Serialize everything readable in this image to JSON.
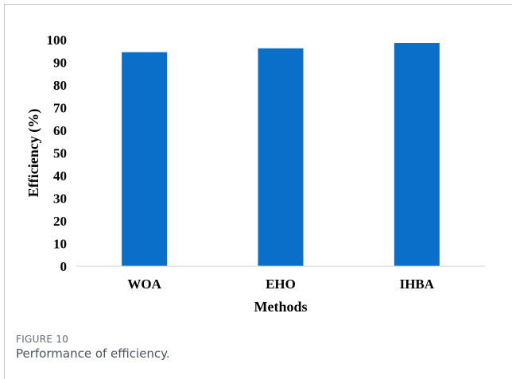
{
  "figure": {
    "label": "FIGURE 10",
    "caption": "Performance of efficiency."
  },
  "chart_data": {
    "type": "bar",
    "categories": [
      "WOA",
      "EHO",
      "IHBA"
    ],
    "values": [
      94.5,
      96.2,
      98.6
    ],
    "xlabel": "Methods",
    "ylabel": "Efficiency (%)",
    "ylim": [
      0,
      100
    ],
    "yticks": [
      0,
      10,
      20,
      30,
      40,
      50,
      60,
      70,
      80,
      90,
      100
    ],
    "grid": false,
    "legend": "none",
    "bar_color": "#0a6fc9"
  }
}
